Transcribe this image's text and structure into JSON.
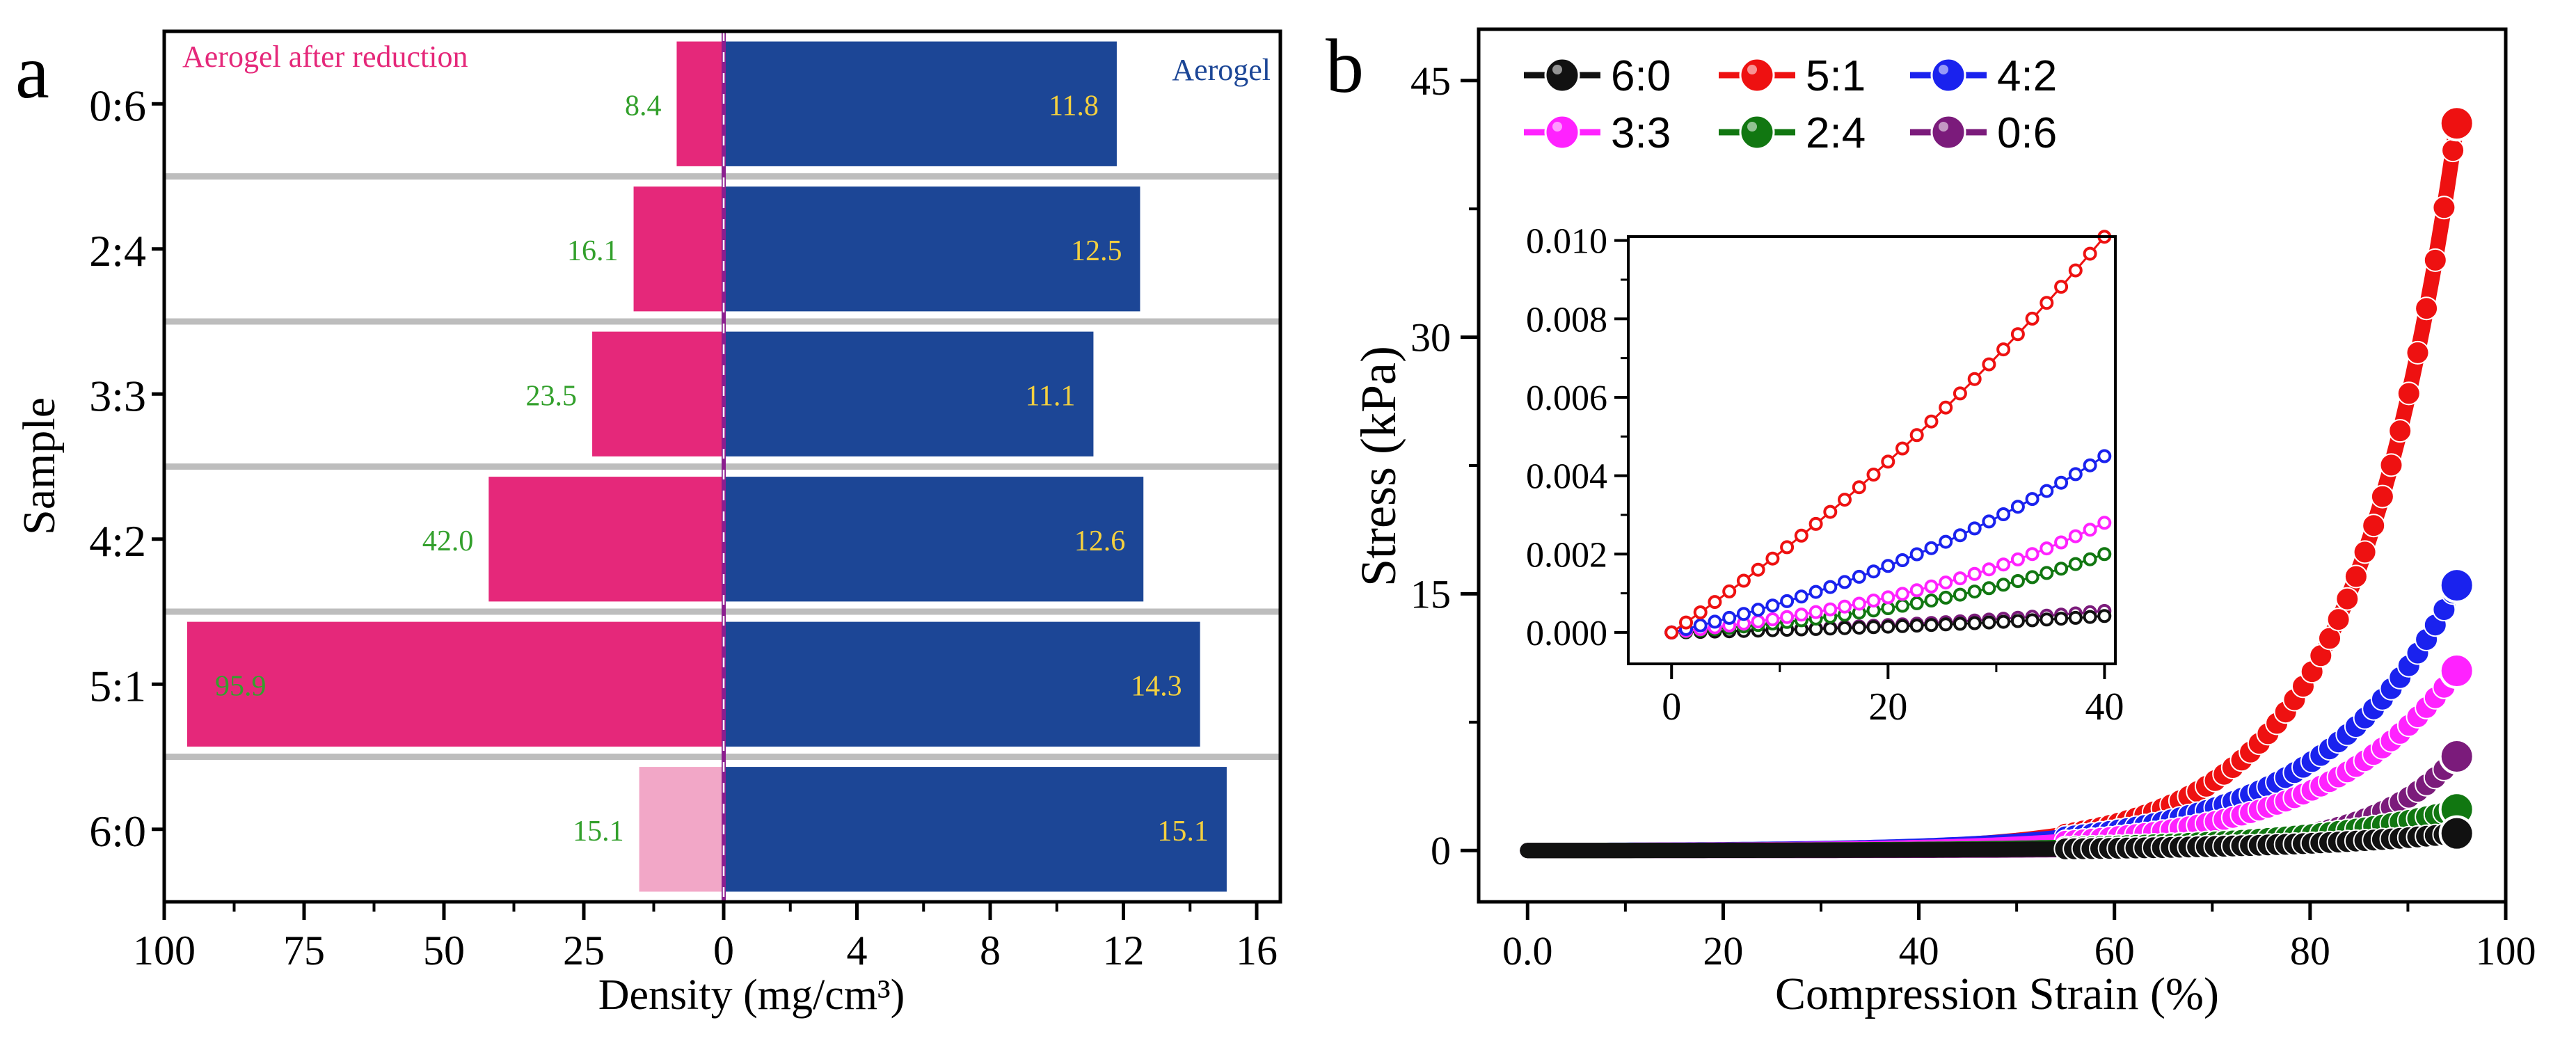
{
  "chart_data": [
    {
      "panel": "a",
      "type": "bar",
      "orientation": "horizontal-butterfly",
      "ylabel": "Sample",
      "xlabel": "Density (mg/cm³)",
      "categories": [
        "0:6",
        "2:4",
        "3:3",
        "4:2",
        "5:1",
        "6:0"
      ],
      "left_axis": {
        "ticks": [
          "100",
          "75",
          "50",
          "25",
          "0"
        ],
        "range": [
          100,
          0
        ]
      },
      "right_axis": {
        "ticks": [
          "0",
          "4",
          "8",
          "12",
          "16"
        ],
        "range": [
          0,
          16
        ]
      },
      "series": [
        {
          "name": "Aerogel after reduction",
          "side": "left",
          "color": "#e5287a",
          "values": [
            8.4,
            16.1,
            23.5,
            42.0,
            95.9,
            15.1
          ],
          "labels": [
            "8.4",
            "16.1",
            "23.5",
            "42.0",
            "95.9",
            "15.1"
          ],
          "label_color": "#33a02c"
        },
        {
          "name": "Aerogel",
          "side": "right",
          "color": "#1c4696",
          "values": [
            11.8,
            12.5,
            11.1,
            12.6,
            14.3,
            15.1
          ],
          "labels": [
            "11.8",
            "12.5",
            "11.1",
            "12.6",
            "14.3",
            "15.1"
          ],
          "label_color": "#f4d03f"
        }
      ],
      "light_bar_color": "#f2a7c7"
    },
    {
      "panel": "b",
      "type": "line",
      "xlabel": "Compression Strain (%)",
      "ylabel": "Stress (kPa)",
      "xlim": [
        -5,
        100
      ],
      "ylim": [
        -3,
        48
      ],
      "xticks": [
        "0.0",
        "20",
        "40",
        "60",
        "80",
        "100"
      ],
      "yticks": [
        "0",
        "15",
        "30",
        "45"
      ],
      "legend": "top-left",
      "series": [
        {
          "name": "6:0",
          "color": "#111111",
          "end_y": 1.0,
          "k": 5.5
        },
        {
          "name": "5:1",
          "color": "#ee1111",
          "end_y": 42.5,
          "k": 9.0
        },
        {
          "name": "4:2",
          "color": "#1a22ee",
          "end_y": 15.5,
          "k": 7.0
        },
        {
          "name": "3:3",
          "color": "#ff22ff",
          "end_y": 10.5,
          "k": 7.0
        },
        {
          "name": "2:4",
          "color": "#117711",
          "end_y": 2.4,
          "k": 6.0
        },
        {
          "name": "0:6",
          "color": "#7b1b7b",
          "end_y": 5.5,
          "k": 11.0
        }
      ],
      "inset": {
        "xlim": [
          -4,
          41
        ],
        "ylim": [
          -0.0008,
          0.0101
        ],
        "xticks": [
          "0",
          "20",
          "40"
        ],
        "yticks": [
          "0.000",
          "0.002",
          "0.004",
          "0.006",
          "0.008",
          "0.010"
        ],
        "series_end_at_40": {
          "6:0": 0.00042,
          "5:1": 0.0101,
          "4:2": 0.0045,
          "3:3": 0.0028,
          "2:4": 0.002,
          "0:6": 0.00055
        }
      }
    }
  ],
  "labels": {
    "panel_a": "a",
    "panel_b": "b"
  }
}
